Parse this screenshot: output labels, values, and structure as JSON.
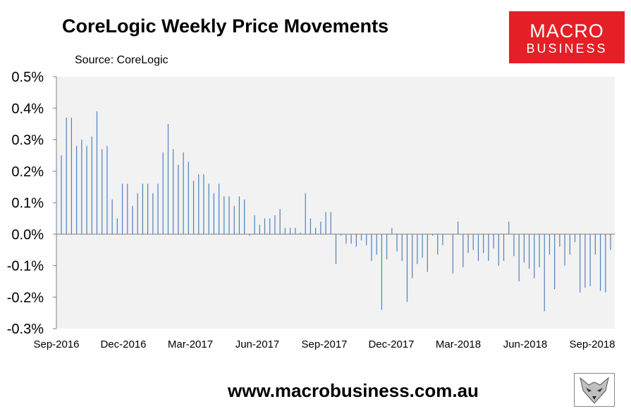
{
  "header": {
    "title": "CoreLogic Weekly Price Movements",
    "source": "Source: CoreLogic"
  },
  "logo": {
    "line1": "MACRO",
    "line2": "BUSINESS",
    "color": "#e41f26"
  },
  "footer": {
    "url": "www.macrobusiness.com.au",
    "badge_icon": "fox-icon"
  },
  "colors": {
    "bar": "#4f81bd",
    "plot_bg": "#f2f2f2",
    "axis": "#7f7f7f"
  },
  "chart_data": {
    "type": "bar",
    "ylim": [
      -0.3,
      0.5
    ],
    "y_ticks": [
      0.5,
      0.4,
      0.3,
      0.2,
      0.1,
      0.0,
      -0.1,
      -0.2,
      -0.3
    ],
    "y_tick_labels": [
      "0.5%",
      "0.4%",
      "0.3%",
      "0.2%",
      "0.1%",
      "0.0%",
      "-0.1%",
      "-0.2%",
      "-0.3%"
    ],
    "x_tick_labels": [
      "Sep-2016",
      "Dec-2016",
      "Mar-2017",
      "Jun-2017",
      "Sep-2017",
      "Dec-2017",
      "Mar-2018",
      "Jun-2018",
      "Sep-2018"
    ],
    "grid": false,
    "values": [
      0.25,
      0.37,
      0.37,
      0.28,
      0.3,
      0.28,
      0.31,
      0.39,
      0.27,
      0.28,
      0.11,
      0.05,
      0.16,
      0.16,
      0.09,
      0.13,
      0.16,
      0.16,
      0.13,
      0.16,
      0.26,
      0.35,
      0.27,
      0.22,
      0.26,
      0.23,
      0.17,
      0.19,
      0.19,
      0.16,
      0.13,
      0.16,
      0.12,
      0.12,
      0.09,
      0.12,
      0.11,
      -0.005,
      0.06,
      0.03,
      0.05,
      0.05,
      0.06,
      0.08,
      0.02,
      0.02,
      0.02,
      0.005,
      0.13,
      0.05,
      0.02,
      0.04,
      0.07,
      0.07,
      -0.095,
      -0.005,
      -0.03,
      -0.03,
      -0.04,
      -0.02,
      -0.035,
      -0.085,
      -0.065,
      -0.24,
      -0.08,
      0.02,
      -0.055,
      -0.085,
      -0.215,
      -0.14,
      -0.095,
      -0.075,
      -0.12,
      -0.005,
      -0.065,
      -0.035,
      0.0,
      -0.125,
      0.04,
      -0.105,
      -0.06,
      -0.05,
      -0.085,
      -0.06,
      -0.085,
      -0.045,
      -0.1,
      -0.085,
      0.04,
      -0.07,
      -0.15,
      -0.09,
      -0.11,
      -0.14,
      -0.105,
      -0.245,
      -0.065,
      -0.175,
      -0.04,
      -0.1,
      -0.065,
      -0.025,
      -0.185,
      -0.17,
      -0.165,
      -0.065,
      -0.18,
      -0.185,
      -0.05
    ]
  }
}
